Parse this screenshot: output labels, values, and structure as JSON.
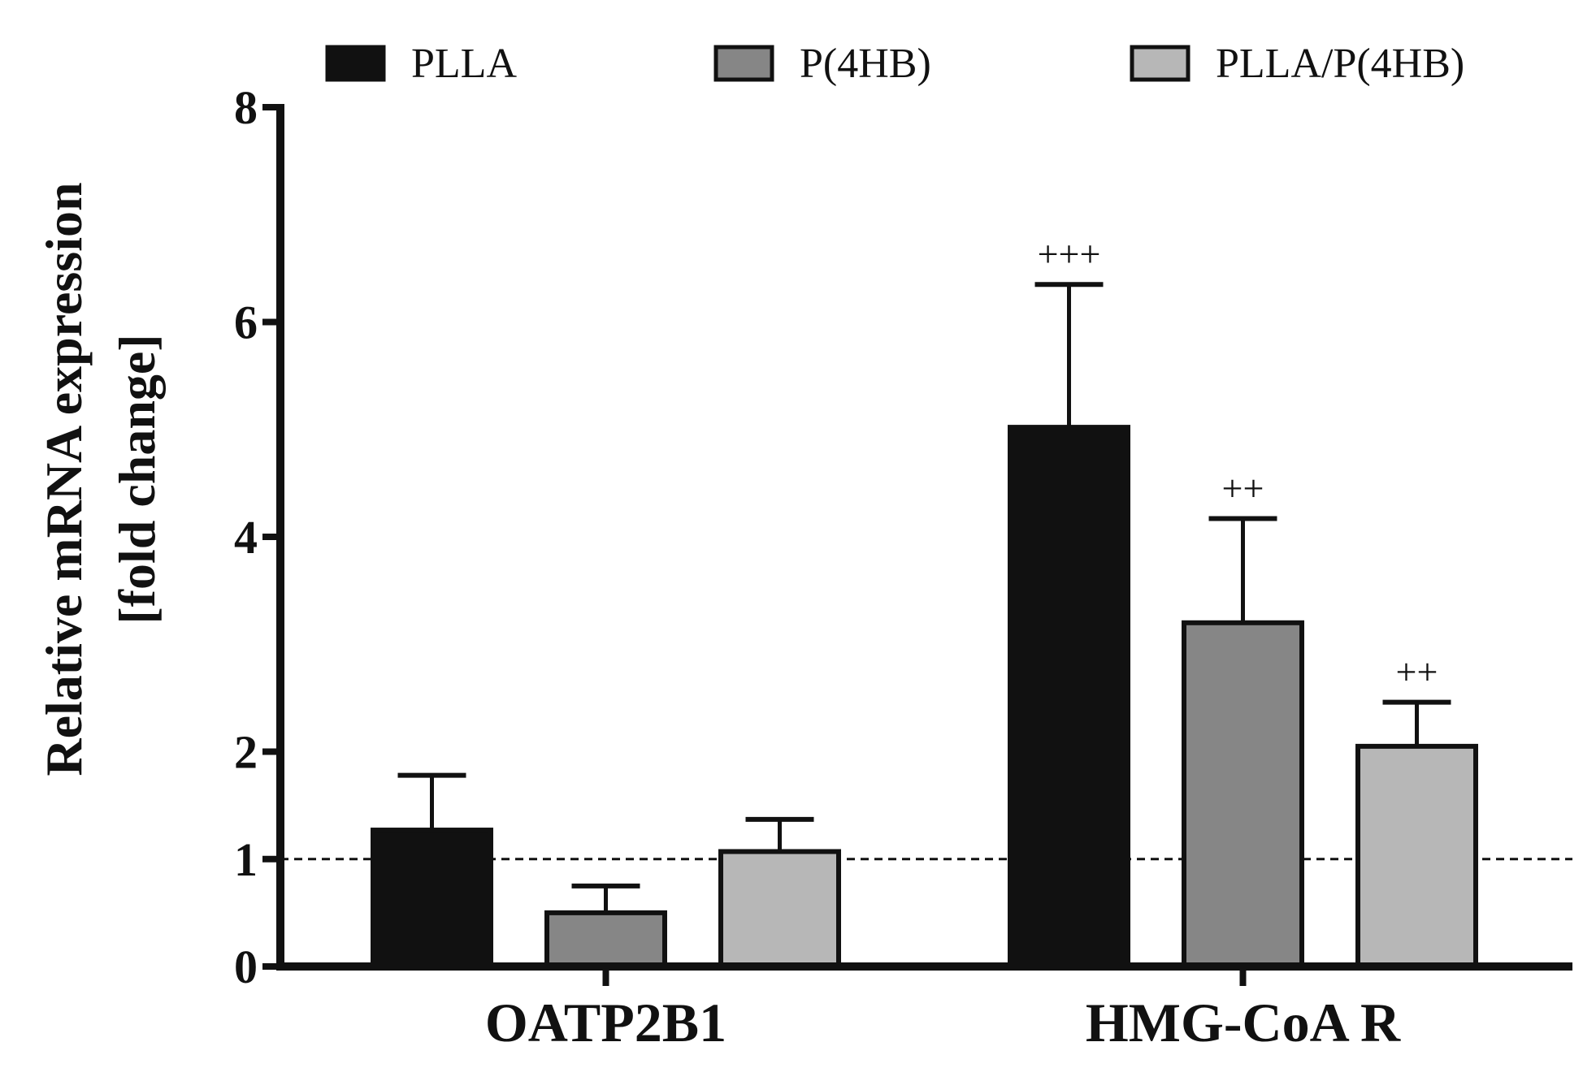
{
  "chart_data": {
    "type": "bar",
    "title": "",
    "xlabel": "",
    "ylabel_line1": "Relative mRNA expression",
    "ylabel_line2": "[fold change]",
    "y_ticks": [
      0,
      1,
      2,
      4,
      6,
      8
    ],
    "y_tick_labels": [
      "0",
      "1",
      "2",
      "4",
      "6",
      "8"
    ],
    "ylim": [
      0,
      8
    ],
    "reference_line": 1,
    "categories": [
      "OATP2B1",
      "HMG-CoA R"
    ],
    "series": [
      {
        "name": "PLLA",
        "color": "#111111",
        "values": [
          1.27,
          5.02
        ],
        "errors": [
          0.51,
          1.33
        ],
        "annotations": [
          "",
          "+++"
        ]
      },
      {
        "name": "P(4HB)",
        "color": "#868686",
        "values": [
          0.5,
          3.2
        ],
        "errors": [
          0.25,
          0.97
        ],
        "annotations": [
          "",
          "++"
        ]
      },
      {
        "name": "PLLA/P(4HB)",
        "color": "#b7b7b7",
        "values": [
          1.07,
          2.05
        ],
        "errors": [
          0.3,
          0.41
        ],
        "annotations": [
          "",
          "++"
        ]
      }
    ],
    "legend_position": "top",
    "grid": false
  }
}
